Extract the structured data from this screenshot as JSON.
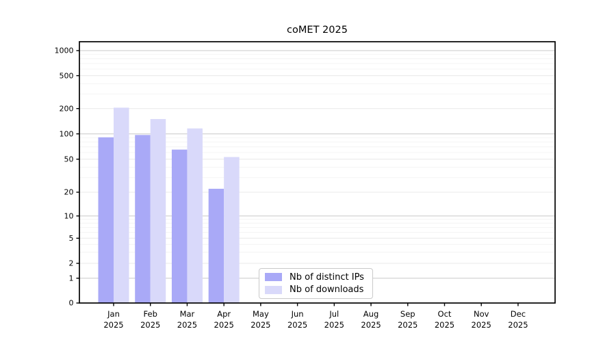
{
  "title": "coMET 2025",
  "legend": {
    "items": [
      {
        "label": "Nb of distinct IPs",
        "color": "#a9a9f7"
      },
      {
        "label": "Nb of downloads",
        "color": "#d9d9fa"
      }
    ]
  },
  "chart_data": {
    "type": "bar",
    "title": "coMET 2025",
    "categories": [
      "Jan 2025",
      "Feb 2025",
      "Mar 2025",
      "Apr 2025",
      "May 2025",
      "Jun 2025",
      "Jul 2025",
      "Aug 2025",
      "Sep 2025",
      "Oct 2025",
      "Nov 2025",
      "Dec 2025"
    ],
    "x_tick_months": [
      "Jan",
      "Feb",
      "Mar",
      "Apr",
      "May",
      "Jun",
      "Jul",
      "Aug",
      "Sep",
      "Oct",
      "Nov",
      "Dec"
    ],
    "x_tick_year": "2025",
    "series": [
      {
        "name": "Nb of distinct IPs",
        "color": "#a9a9f7",
        "values": [
          91,
          97,
          65,
          22,
          0,
          0,
          0,
          0,
          0,
          0,
          0,
          0
        ]
      },
      {
        "name": "Nb of downloads",
        "color": "#d9d9fa",
        "values": [
          205,
          150,
          116,
          53,
          0,
          0,
          0,
          0,
          0,
          0,
          0,
          0
        ]
      }
    ],
    "yscale": "symlog",
    "yticks": [
      0,
      1,
      2,
      5,
      10,
      20,
      50,
      100,
      200,
      500,
      1000
    ],
    "ylim": [
      0,
      1200
    ],
    "grid": true,
    "legend_position": "lower center",
    "bar_style": "paired",
    "colors": {
      "major_grid": "#c8c8c8",
      "labeled_grid": "#e8e8e8",
      "minor_grid": "#f4f4f4",
      "spine": "#000000"
    }
  }
}
